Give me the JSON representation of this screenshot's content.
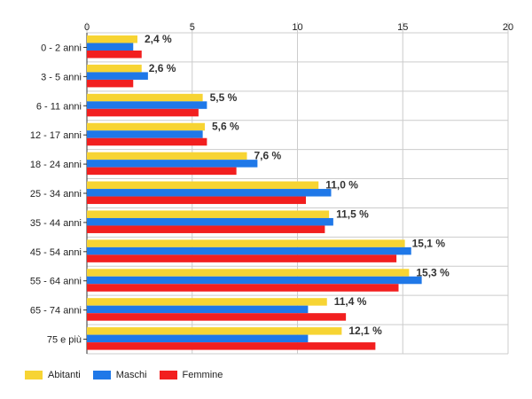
{
  "chart_data": {
    "type": "bar",
    "orientation": "horizontal",
    "categories": [
      "0 - 2 anni",
      "3 - 5 anni",
      "6 - 11 anni",
      "12 - 17 anni",
      "18 - 24 anni",
      "25 - 34 anni",
      "35 - 44 anni",
      "45 - 54 anni",
      "55 - 64 anni",
      "65 - 74 anni",
      "75 e più"
    ],
    "series": [
      {
        "name": "Abitanti",
        "color": "#f7d433",
        "values": [
          2.4,
          2.6,
          5.5,
          5.6,
          7.6,
          11.0,
          11.5,
          15.1,
          15.3,
          11.4,
          12.1
        ]
      },
      {
        "name": "Maschi",
        "color": "#1f78e8",
        "values": [
          2.2,
          2.9,
          5.7,
          5.5,
          8.1,
          11.6,
          11.7,
          15.4,
          15.9,
          10.5,
          10.5
        ]
      },
      {
        "name": "Femmine",
        "color": "#f21f1f",
        "values": [
          2.6,
          2.2,
          5.3,
          5.7,
          7.1,
          10.4,
          11.3,
          14.7,
          14.8,
          12.3,
          13.7
        ]
      }
    ],
    "data_labels": [
      "2,4 %",
      "2,6 %",
      "5,5 %",
      "5,6 %",
      "7,6 %",
      "11,0 %",
      "11,5 %",
      "15,1 %",
      "15,3 %",
      "11,4 %",
      "12,1 %"
    ],
    "xticks": [
      "0",
      "5",
      "10",
      "15",
      "20"
    ],
    "xlim": [
      0,
      20
    ],
    "grid": true,
    "legend_position": "bottom-left"
  }
}
